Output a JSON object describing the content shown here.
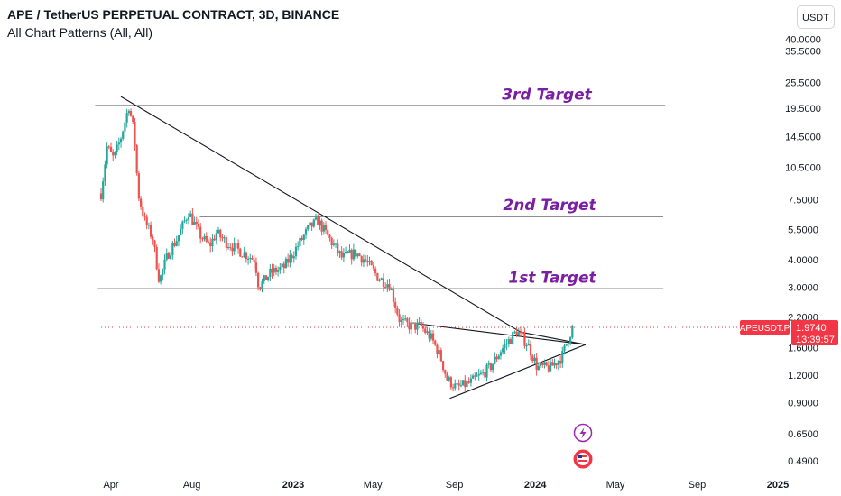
{
  "header": {
    "title": "APE / TetherUS PERPETUAL CONTRACT, 3D, BINANCE",
    "indicator": "All Chart Patterns (All, All)",
    "currency_button": "USDT"
  },
  "price_badge": {
    "symbol": "APEUSDT.P",
    "price": "1.9740",
    "countdown": "13:39:57"
  },
  "colors": {
    "up": "#26a69a",
    "down": "#ef5350",
    "line": "#131722",
    "annotation": "#7b1fa2",
    "badge_red": "#f23645",
    "price_line": "#f23645"
  },
  "chart_data": {
    "type": "candlestick",
    "title": "APE / TetherUS PERPETUAL CONTRACT, 3D, BINANCE",
    "y_scale": "log",
    "ylim": [
      0.45,
      43
    ],
    "y_ticks": [
      "40.0000",
      "35.5000",
      "25.5000",
      "19.5000",
      "14.5000",
      "10.5000",
      "7.5000",
      "5.5000",
      "4.0000",
      "3.0000",
      "2.2000",
      "1.6000",
      "1.2000",
      "0.9000",
      "0.6500",
      "0.4900"
    ],
    "x_ticks": [
      "Apr",
      "Aug",
      "2023",
      "May",
      "Sep",
      "2024",
      "May",
      "Sep",
      "2025"
    ],
    "x_tick_dates": [
      "2022-04-01",
      "2022-08-01",
      "2023-01-01",
      "2023-05-01",
      "2023-09-01",
      "2024-01-01",
      "2024-05-01",
      "2024-09-01",
      "2025-01-01"
    ],
    "x_range": [
      "2022-03-17",
      "2025-01-20"
    ],
    "close_path": [
      [
        "2022-03-17",
        8.0
      ],
      [
        "2022-03-26",
        13.0
      ],
      [
        "2022-04-05",
        11.5
      ],
      [
        "2022-04-15",
        14.0
      ],
      [
        "2022-04-28",
        20.0
      ],
      [
        "2022-05-06",
        15.0
      ],
      [
        "2022-05-12",
        8.0
      ],
      [
        "2022-05-22",
        6.0
      ],
      [
        "2022-06-03",
        5.0
      ],
      [
        "2022-06-13",
        3.2
      ],
      [
        "2022-06-25",
        4.2
      ],
      [
        "2022-07-10",
        5.0
      ],
      [
        "2022-07-27",
        6.6
      ],
      [
        "2022-08-13",
        5.2
      ],
      [
        "2022-08-27",
        4.6
      ],
      [
        "2022-09-07",
        5.3
      ],
      [
        "2022-09-22",
        4.8
      ],
      [
        "2022-10-12",
        4.4
      ],
      [
        "2022-11-04",
        4.0
      ],
      [
        "2022-11-10",
        3.0
      ],
      [
        "2022-11-28",
        3.5
      ],
      [
        "2022-12-18",
        3.7
      ],
      [
        "2023-01-07",
        4.6
      ],
      [
        "2023-01-25",
        5.6
      ],
      [
        "2023-02-07",
        6.0
      ],
      [
        "2023-02-28",
        4.8
      ],
      [
        "2023-03-15",
        4.1
      ],
      [
        "2023-04-05",
        4.3
      ],
      [
        "2023-04-19",
        4.0
      ],
      [
        "2023-05-10",
        3.3
      ],
      [
        "2023-05-26",
        3.1
      ],
      [
        "2023-06-11",
        2.1
      ],
      [
        "2023-06-27",
        2.0
      ],
      [
        "2023-07-12",
        2.0
      ],
      [
        "2023-07-29",
        1.75
      ],
      [
        "2023-08-11",
        1.45
      ],
      [
        "2023-08-21",
        1.15
      ],
      [
        "2023-09-04",
        1.05
      ],
      [
        "2023-09-23",
        1.1
      ],
      [
        "2023-10-11",
        1.2
      ],
      [
        "2023-10-25",
        1.3
      ],
      [
        "2023-11-10",
        1.55
      ],
      [
        "2023-12-04",
        1.9
      ],
      [
        "2023-12-21",
        1.65
      ],
      [
        "2024-01-04",
        1.3
      ],
      [
        "2024-01-24",
        1.3
      ],
      [
        "2024-02-10",
        1.45
      ],
      [
        "2024-02-26",
        1.97
      ]
    ],
    "current_price": 1.974,
    "trendlines": [
      {
        "points": [
          [
            "2022-04-16",
            22.0
          ],
          [
            "2023-12-10",
            1.88
          ],
          [
            "2024-03-17",
            1.65
          ]
        ]
      },
      {
        "points": [
          [
            "2023-07-08",
            2.05
          ],
          [
            "2024-03-17",
            1.65
          ]
        ]
      },
      {
        "points": [
          [
            "2023-08-25",
            0.94
          ],
          [
            "2024-03-17",
            1.65
          ]
        ]
      }
    ],
    "levels": [
      {
        "label": "3rd Target",
        "price": 20.0,
        "from": "2022-03-08",
        "to": "2024-07-15"
      },
      {
        "label": "2nd Target",
        "price": 6.3,
        "from": "2022-08-13",
        "to": "2024-07-12"
      },
      {
        "label": "1st Target",
        "price": 2.95,
        "from": "2022-03-12",
        "to": "2024-07-12"
      }
    ]
  }
}
